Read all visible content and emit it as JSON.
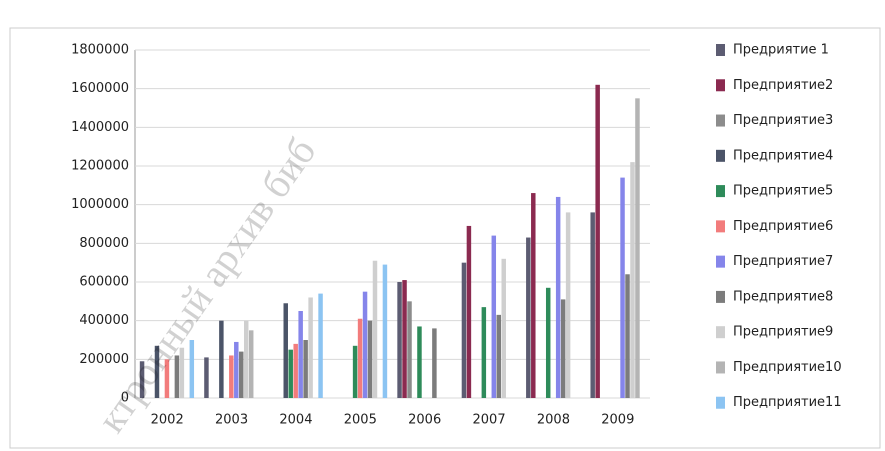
{
  "chart_data": {
    "type": "bar",
    "categories": [
      "2002",
      "2003",
      "2004",
      "2005",
      "2006",
      "2007",
      "2008",
      "2009"
    ],
    "series": [
      {
        "name": "Предриятие 1",
        "color": "#5c5c72",
        "values": [
          190000,
          210000,
          null,
          null,
          600000,
          700000,
          830000,
          960000
        ]
      },
      {
        "name": "Предприятие2",
        "color": "#8b2a50",
        "values": [
          null,
          null,
          null,
          null,
          610000,
          890000,
          1060000,
          1620000
        ]
      },
      {
        "name": "Предприятие3",
        "color": "#8c8c8c",
        "values": [
          null,
          null,
          null,
          null,
          500000,
          null,
          null,
          null
        ]
      },
      {
        "name": "Предприятие4",
        "color": "#4b5468",
        "values": [
          270000,
          400000,
          490000,
          null,
          null,
          null,
          null,
          null
        ]
      },
      {
        "name": "Предприятие5",
        "color": "#2e8b5a",
        "values": [
          null,
          null,
          250000,
          270000,
          370000,
          470000,
          570000,
          null
        ]
      },
      {
        "name": "Предприятие6",
        "color": "#f27c7c",
        "values": [
          200000,
          220000,
          280000,
          410000,
          null,
          null,
          null,
          null
        ]
      },
      {
        "name": "Предприятие7",
        "color": "#8585ea",
        "values": [
          null,
          290000,
          450000,
          550000,
          null,
          840000,
          1040000,
          1140000
        ]
      },
      {
        "name": "Предприятие8",
        "color": "#7c7c7c",
        "values": [
          220000,
          240000,
          300000,
          400000,
          360000,
          430000,
          510000,
          640000
        ]
      },
      {
        "name": "Предприятие9",
        "color": "#cfcfcf",
        "values": [
          260000,
          400000,
          520000,
          710000,
          null,
          720000,
          960000,
          1220000
        ]
      },
      {
        "name": "Предприятие10",
        "color": "#b4b4b4",
        "values": [
          null,
          350000,
          null,
          null,
          null,
          null,
          null,
          1550000
        ]
      },
      {
        "name": "Предприятие11",
        "color": "#8cc4f2",
        "values": [
          300000,
          null,
          540000,
          690000,
          null,
          null,
          null,
          null
        ]
      }
    ],
    "ylim": [
      0,
      1800000
    ],
    "yticks": [
      0,
      200000,
      400000,
      600000,
      800000,
      1000000,
      1200000,
      1400000,
      1600000,
      1800000
    ],
    "grid": true,
    "legend": "right",
    "watermark": "ктронный архив биб"
  }
}
